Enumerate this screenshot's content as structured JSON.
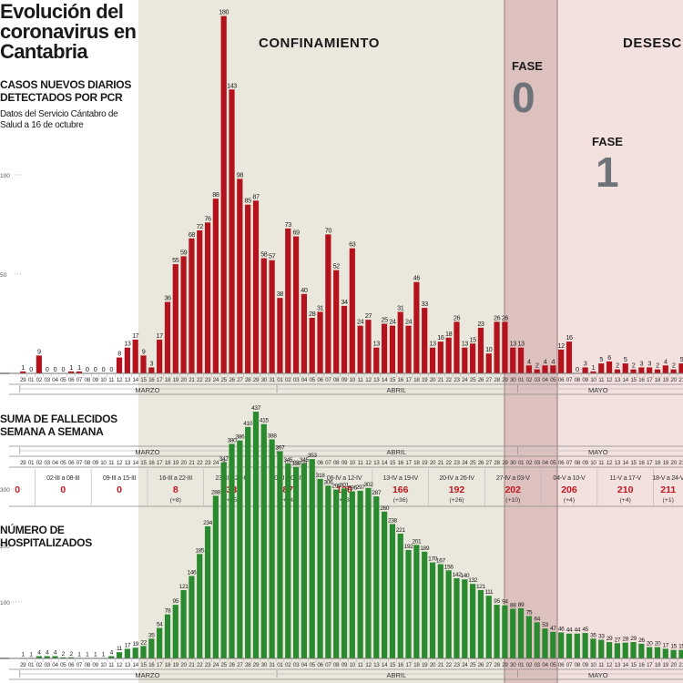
{
  "title": "Evolución del coronavirus en Cantabria",
  "subtitle": "CASOS NUEVOS DIARIOS DETECTADOS POR PCR",
  "source": "Datos del Servicio Cántabro de Salud a 16 de octubre",
  "phases": {
    "confinamiento": "CONFINAMIENTO",
    "desescalada": "DESESC",
    "fase_label": "FASE",
    "fase0": "0",
    "fase1": "1"
  },
  "months": [
    "MARZO",
    "ABRIL",
    "MAYO"
  ],
  "day_labels": [
    "29",
    "01",
    "02",
    "03",
    "04",
    "05",
    "06",
    "07",
    "08",
    "09",
    "10",
    "11",
    "12",
    "13",
    "14",
    "15",
    "16",
    "17",
    "18",
    "19",
    "20",
    "21",
    "22",
    "23",
    "24",
    "25",
    "26",
    "27",
    "28",
    "29",
    "30",
    "31",
    "01",
    "02",
    "03",
    "04",
    "05",
    "06",
    "07",
    "08",
    "09",
    "10",
    "11",
    "12",
    "13",
    "14",
    "15",
    "16",
    "17",
    "18",
    "19",
    "20",
    "21",
    "22",
    "23",
    "24",
    "25",
    "26",
    "27",
    "28",
    "29",
    "30",
    "01",
    "02",
    "03",
    "04",
    "05",
    "06",
    "07",
    "08",
    "09",
    "10",
    "11",
    "12",
    "13",
    "14",
    "15",
    "16",
    "17",
    "18",
    "19",
    "20",
    "21",
    "22",
    "23",
    "24",
    "25",
    "26"
  ],
  "chart_data": [
    {
      "type": "bar",
      "title": "CASOS NUEVOS DIARIOS DETECTADOS POR PCR",
      "yticks": [
        50,
        100
      ],
      "ylim": [
        0,
        185
      ],
      "color": "#b4121d",
      "values": [
        1,
        0,
        9,
        0,
        0,
        0,
        1,
        1,
        0,
        0,
        0,
        0,
        8,
        13,
        17,
        9,
        3,
        17,
        36,
        55,
        59,
        68,
        72,
        76,
        88,
        180,
        143,
        98,
        85,
        87,
        58,
        57,
        38,
        73,
        69,
        40,
        28,
        31,
        70,
        52,
        34,
        63,
        24,
        27,
        13,
        25,
        24,
        31,
        24,
        46,
        33,
        13,
        16,
        18,
        26,
        13,
        15,
        23,
        10,
        26,
        26,
        13,
        13,
        4,
        2,
        4,
        4,
        12,
        16,
        0,
        3,
        1,
        5,
        6,
        2,
        5,
        2,
        3,
        3,
        2,
        4,
        2,
        5,
        3,
        2,
        0,
        4,
        2
      ]
    },
    {
      "type": "table",
      "title": "SUMA DE FALLECIDOS SEMANA A SEMANA",
      "weeks": [
        {
          "range": "",
          "total": "0",
          "change": ""
        },
        {
          "range": "02-III a 08-III",
          "total": "0",
          "change": ""
        },
        {
          "range": "09-III a 15-III",
          "total": "0",
          "change": ""
        },
        {
          "range": "16-III a 22-III",
          "total": "8",
          "change": "(+8)"
        },
        {
          "range": "23-III a 29-III",
          "total": "33",
          "change": "(+25)"
        },
        {
          "range": "30-III a 05-IV",
          "total": "87",
          "change": "(+54)"
        },
        {
          "range": "06-IV a 12-IV",
          "total": "130",
          "change": "(+43)"
        },
        {
          "range": "13-IV a 19-IV",
          "total": "166",
          "change": "(+36)"
        },
        {
          "range": "20-IV a 26-IV",
          "total": "192",
          "change": "(+26)"
        },
        {
          "range": "27-IV a 03-V",
          "total": "202",
          "change": "(+10)"
        },
        {
          "range": "04-V a 10-V",
          "total": "206",
          "change": "(+4)"
        },
        {
          "range": "11-V a 17-V",
          "total": "210",
          "change": "(+4)"
        },
        {
          "range": "18-V a 24-V",
          "total": "211",
          "change": "(+1)"
        },
        {
          "range": "25",
          "total": "",
          "change": ""
        }
      ]
    },
    {
      "type": "bar",
      "title": "NÚMERO DE HOSPITALIZADOS",
      "yticks": [
        100,
        200,
        300
      ],
      "ylim": [
        0,
        440
      ],
      "color": "#2a8a2f",
      "values": [
        1,
        1,
        4,
        4,
        4,
        2,
        2,
        1,
        1,
        1,
        1,
        4,
        11,
        17,
        19,
        22,
        35,
        54,
        78,
        95,
        121,
        146,
        185,
        234,
        288,
        347,
        380,
        386,
        410,
        437,
        415,
        388,
        367,
        345,
        339,
        345,
        353,
        318,
        306,
        299,
        301,
        296,
        297,
        302,
        287,
        260,
        238,
        221,
        192,
        201,
        189,
        170,
        167,
        156,
        142,
        140,
        132,
        121,
        111,
        95,
        94,
        88,
        89,
        75,
        64,
        53,
        47,
        46,
        44,
        44,
        45,
        35,
        33,
        29,
        27,
        28,
        29,
        26,
        20,
        20,
        17,
        15,
        15,
        18,
        19,
        14,
        13,
        12
      ]
    }
  ]
}
